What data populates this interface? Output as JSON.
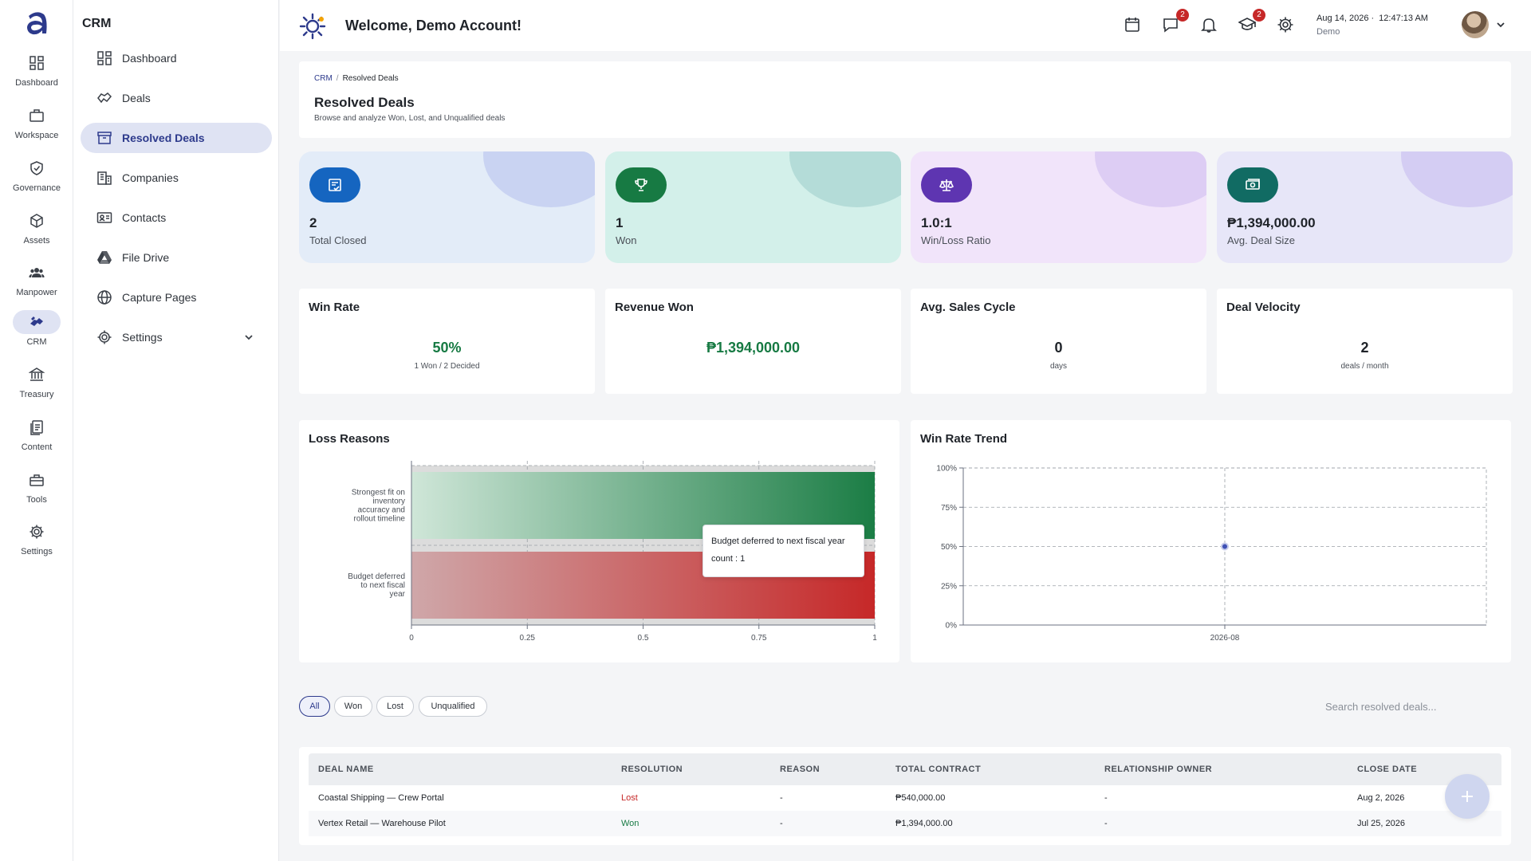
{
  "rail": {
    "items": [
      {
        "label": "Dashboard",
        "icon": "dashboard-icon"
      },
      {
        "label": "Workspace",
        "icon": "briefcase-icon"
      },
      {
        "label": "Governance",
        "icon": "shield-check-icon"
      },
      {
        "label": "Assets",
        "icon": "cube-icon"
      },
      {
        "label": "Manpower",
        "icon": "people-icon"
      },
      {
        "label": "CRM",
        "icon": "handshake-icon"
      },
      {
        "label": "Treasury",
        "icon": "bank-icon"
      },
      {
        "label": "Content",
        "icon": "document-icon"
      },
      {
        "label": "Tools",
        "icon": "toolbox-icon"
      },
      {
        "label": "Settings",
        "icon": "gear-icon"
      }
    ]
  },
  "sidebar": {
    "title": "CRM",
    "items": [
      {
        "label": "Dashboard",
        "icon": "dashboard-icon"
      },
      {
        "label": "Deals",
        "icon": "handshake-icon"
      },
      {
        "label": "Resolved Deals",
        "icon": "archive-icon"
      },
      {
        "label": "Companies",
        "icon": "building-icon"
      },
      {
        "label": "Contacts",
        "icon": "contact-card-icon"
      },
      {
        "label": "File Drive",
        "icon": "drive-icon"
      },
      {
        "label": "Capture Pages",
        "icon": "globe-icon"
      },
      {
        "label": "Settings",
        "icon": "gear-icon"
      }
    ]
  },
  "topbar": {
    "welcome": "Welcome, Demo Account!",
    "messages_badge": "2",
    "learning_badge": "2",
    "date": "Aug 14, 2026 ·",
    "time": "12:47:13 AM",
    "user": "Demo"
  },
  "header": {
    "crumb_root": "CRM",
    "crumb_sep": "/",
    "crumb_current": "Resolved Deals",
    "title": "Resolved Deals",
    "subtitle": "Browse and analyze Won, Lost, and Unqualified deals"
  },
  "stats": [
    {
      "value": "2",
      "label": "Total Closed",
      "icon": "checklist-icon",
      "bg": "#e3ecf8",
      "accent": "#1565c0",
      "blob": "#c9d3f2"
    },
    {
      "value": "1",
      "label": "Won",
      "icon": "trophy-icon",
      "bg": "#d3f0ea",
      "accent": "#177a43",
      "blob": "#b4dcd8"
    },
    {
      "value": "1.0:1",
      "label": "Win/Loss Ratio",
      "icon": "scale-icon",
      "bg": "#f1e4fa",
      "accent": "#5e35b1",
      "blob": "#ddcdf4"
    },
    {
      "value": "₱1,394,000.00",
      "label": "Avg. Deal Size",
      "icon": "cash-icon",
      "bg": "#e7e6f8",
      "accent": "#116b63",
      "blob": "#d4cdf3"
    }
  ],
  "metrics": [
    {
      "title": "Win Rate",
      "value": "50%",
      "sub": "1 Won / 2 Decided"
    },
    {
      "title": "Revenue Won",
      "value": "₱1,394,000.00",
      "sub": ""
    },
    {
      "title": "Avg. Sales Cycle",
      "value": "0",
      "sub": "days"
    },
    {
      "title": "Deal Velocity",
      "value": "2",
      "sub": "deals / month"
    }
  ],
  "chart_data": [
    {
      "type": "bar",
      "orientation": "horizontal",
      "title": "Loss Reasons",
      "categories": [
        "Strongest fit on inventory accuracy and rollout timeline",
        "Budget deferred to next fiscal year"
      ],
      "category_lines": [
        [
          "Strongest fit on",
          "inventory",
          "accuracy and",
          "rollout timeline"
        ],
        [
          "Budget deferred",
          "to next fiscal",
          "year"
        ]
      ],
      "values": [
        1,
        1
      ],
      "bar_colors": [
        "#1b7d45",
        "#c62828"
      ],
      "xlim": [
        0,
        1
      ],
      "xticks": [
        "0",
        "0.25",
        "0.5",
        "0.75",
        "1"
      ],
      "grid": true,
      "tooltip": {
        "name": "Budget deferred to next fiscal year",
        "count_label": "count : 1"
      }
    },
    {
      "type": "line",
      "title": "Win Rate Trend",
      "x": [
        "2026-08"
      ],
      "values": [
        50
      ],
      "ylim": [
        0,
        100
      ],
      "yticks": [
        "0%",
        "25%",
        "50%",
        "75%",
        "100%"
      ],
      "grid": true,
      "color": "#3f51b5"
    }
  ],
  "filters": {
    "chips": [
      "All",
      "Won",
      "Lost",
      "Unqualified"
    ],
    "active": "All",
    "search_placeholder": "Search resolved deals..."
  },
  "table": {
    "columns": [
      "DEAL NAME",
      "RESOLUTION",
      "REASON",
      "TOTAL CONTRACT",
      "RELATIONSHIP OWNER",
      "CLOSE DATE"
    ],
    "rows": [
      {
        "deal": "Coastal Shipping — Crew Portal",
        "resolution": "Lost",
        "reason": "-",
        "total": "₱540,000.00",
        "owner": "-",
        "close": "Aug 2, 2026"
      },
      {
        "deal": "Vertex Retail — Warehouse Pilot",
        "resolution": "Won",
        "reason": "-",
        "total": "₱1,394,000.00",
        "owner": "-",
        "close": "Jul 25, 2026"
      }
    ]
  }
}
